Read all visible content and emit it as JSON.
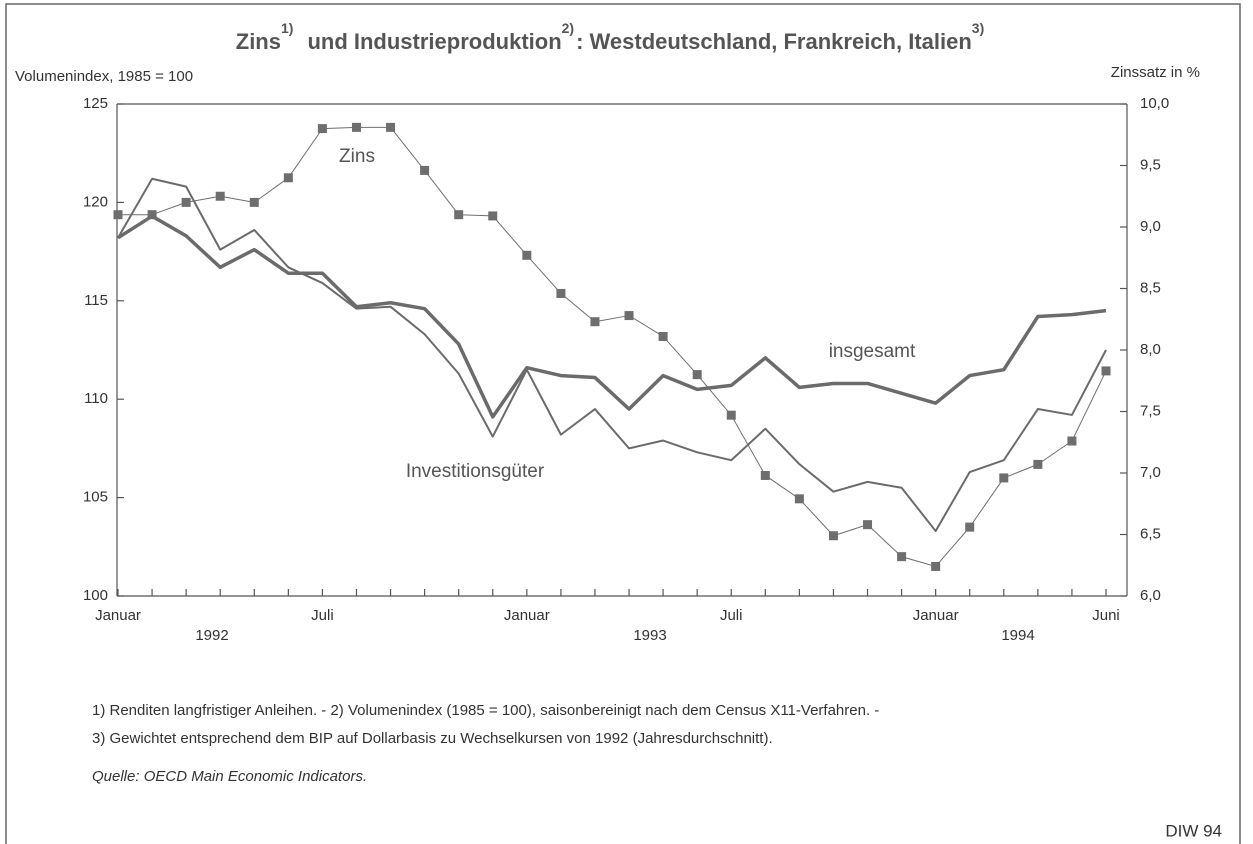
{
  "chart_data": {
    "type": "line",
    "title": [
      "Zins",
      "1)",
      "und Industrieproduktion",
      "2)",
      ": Westdeutschland, Frankreich, Italien",
      "3)"
    ],
    "ylabel": "Volumenindex, 1985 = 100",
    "y2label": "Zinssatz in %",
    "categories": [
      "Januar",
      null,
      null,
      null,
      null,
      null,
      "Juli",
      null,
      null,
      null,
      null,
      null,
      "Januar",
      null,
      null,
      null,
      null,
      null,
      "Juli",
      null,
      null,
      null,
      null,
      null,
      "Januar",
      null,
      null,
      null,
      null,
      "Juni"
    ],
    "years": [
      "1992",
      "1993",
      "1994"
    ],
    "ylim": [
      100,
      125
    ],
    "yticks": [
      100,
      105,
      110,
      115,
      120,
      125
    ],
    "y2lim": [
      6.0,
      10.0
    ],
    "y2ticks": [
      {
        "value": 6.0,
        "label": "6,0"
      },
      {
        "value": 6.5,
        "label": "6,5"
      },
      {
        "value": 7.0,
        "label": "7,0"
      },
      {
        "value": 7.5,
        "label": "7,5"
      },
      {
        "value": 8.0,
        "label": "8,0"
      },
      {
        "value": 8.5,
        "label": "8,5"
      },
      {
        "value": 9.0,
        "label": "9,0"
      },
      {
        "value": 9.5,
        "label": "9,5"
      },
      {
        "value": 10.0,
        "label": "10,0"
      }
    ],
    "series": [
      {
        "name": "Zins",
        "color": "#6e6e6e",
        "axis": "y2",
        "values": [
          9.1,
          9.1,
          9.2,
          9.25,
          9.2,
          9.4,
          9.8,
          9.81,
          9.81,
          9.46,
          9.1,
          9.09,
          8.77,
          8.46,
          8.23,
          8.28,
          8.11,
          7.8,
          7.47,
          6.98,
          6.79,
          6.49,
          6.58,
          6.32,
          6.24,
          6.56,
          6.96,
          7.07,
          7.26,
          7.83
        ]
      },
      {
        "name": "insgesamt",
        "color": "#6b6b6b",
        "values": [
          118.2,
          119.3,
          118.3,
          116.7,
          117.6,
          116.4,
          116.4,
          114.7,
          114.9,
          114.6,
          112.8,
          109.1,
          111.6,
          111.2,
          111.1,
          109.5,
          111.2,
          110.5,
          110.7,
          112.1,
          110.6,
          110.8,
          110.8,
          110.3,
          109.8,
          111.2,
          111.5,
          114.2,
          114.3,
          114.5
        ]
      },
      {
        "name": "Investitionsgüter",
        "color": "#6b6b6b",
        "values": [
          118.2,
          121.2,
          120.8,
          117.6,
          118.6,
          116.7,
          115.9,
          114.6,
          114.7,
          113.3,
          111.3,
          108.1,
          111.5,
          108.2,
          109.5,
          107.5,
          107.9,
          107.3,
          106.9,
          108.5,
          106.7,
          105.3,
          105.8,
          105.5,
          103.3,
          106.3,
          106.9,
          109.5,
          109.2,
          112.5
        ]
      }
    ],
    "footnotes": [
      "1) Renditen langfristiger Anleihen. - 2) Volumenindex (1985 = 100), saisonbereinigt nach dem Census X11-Verfahren. -",
      "3) Gewichtet entsprechend dem BIP auf Dollarbasis zu Wechselkursen von 1992 (Jahresdurchschnitt)."
    ],
    "source": "Quelle: OECD Main Economic Indicators.",
    "credit": "DIW 94"
  }
}
